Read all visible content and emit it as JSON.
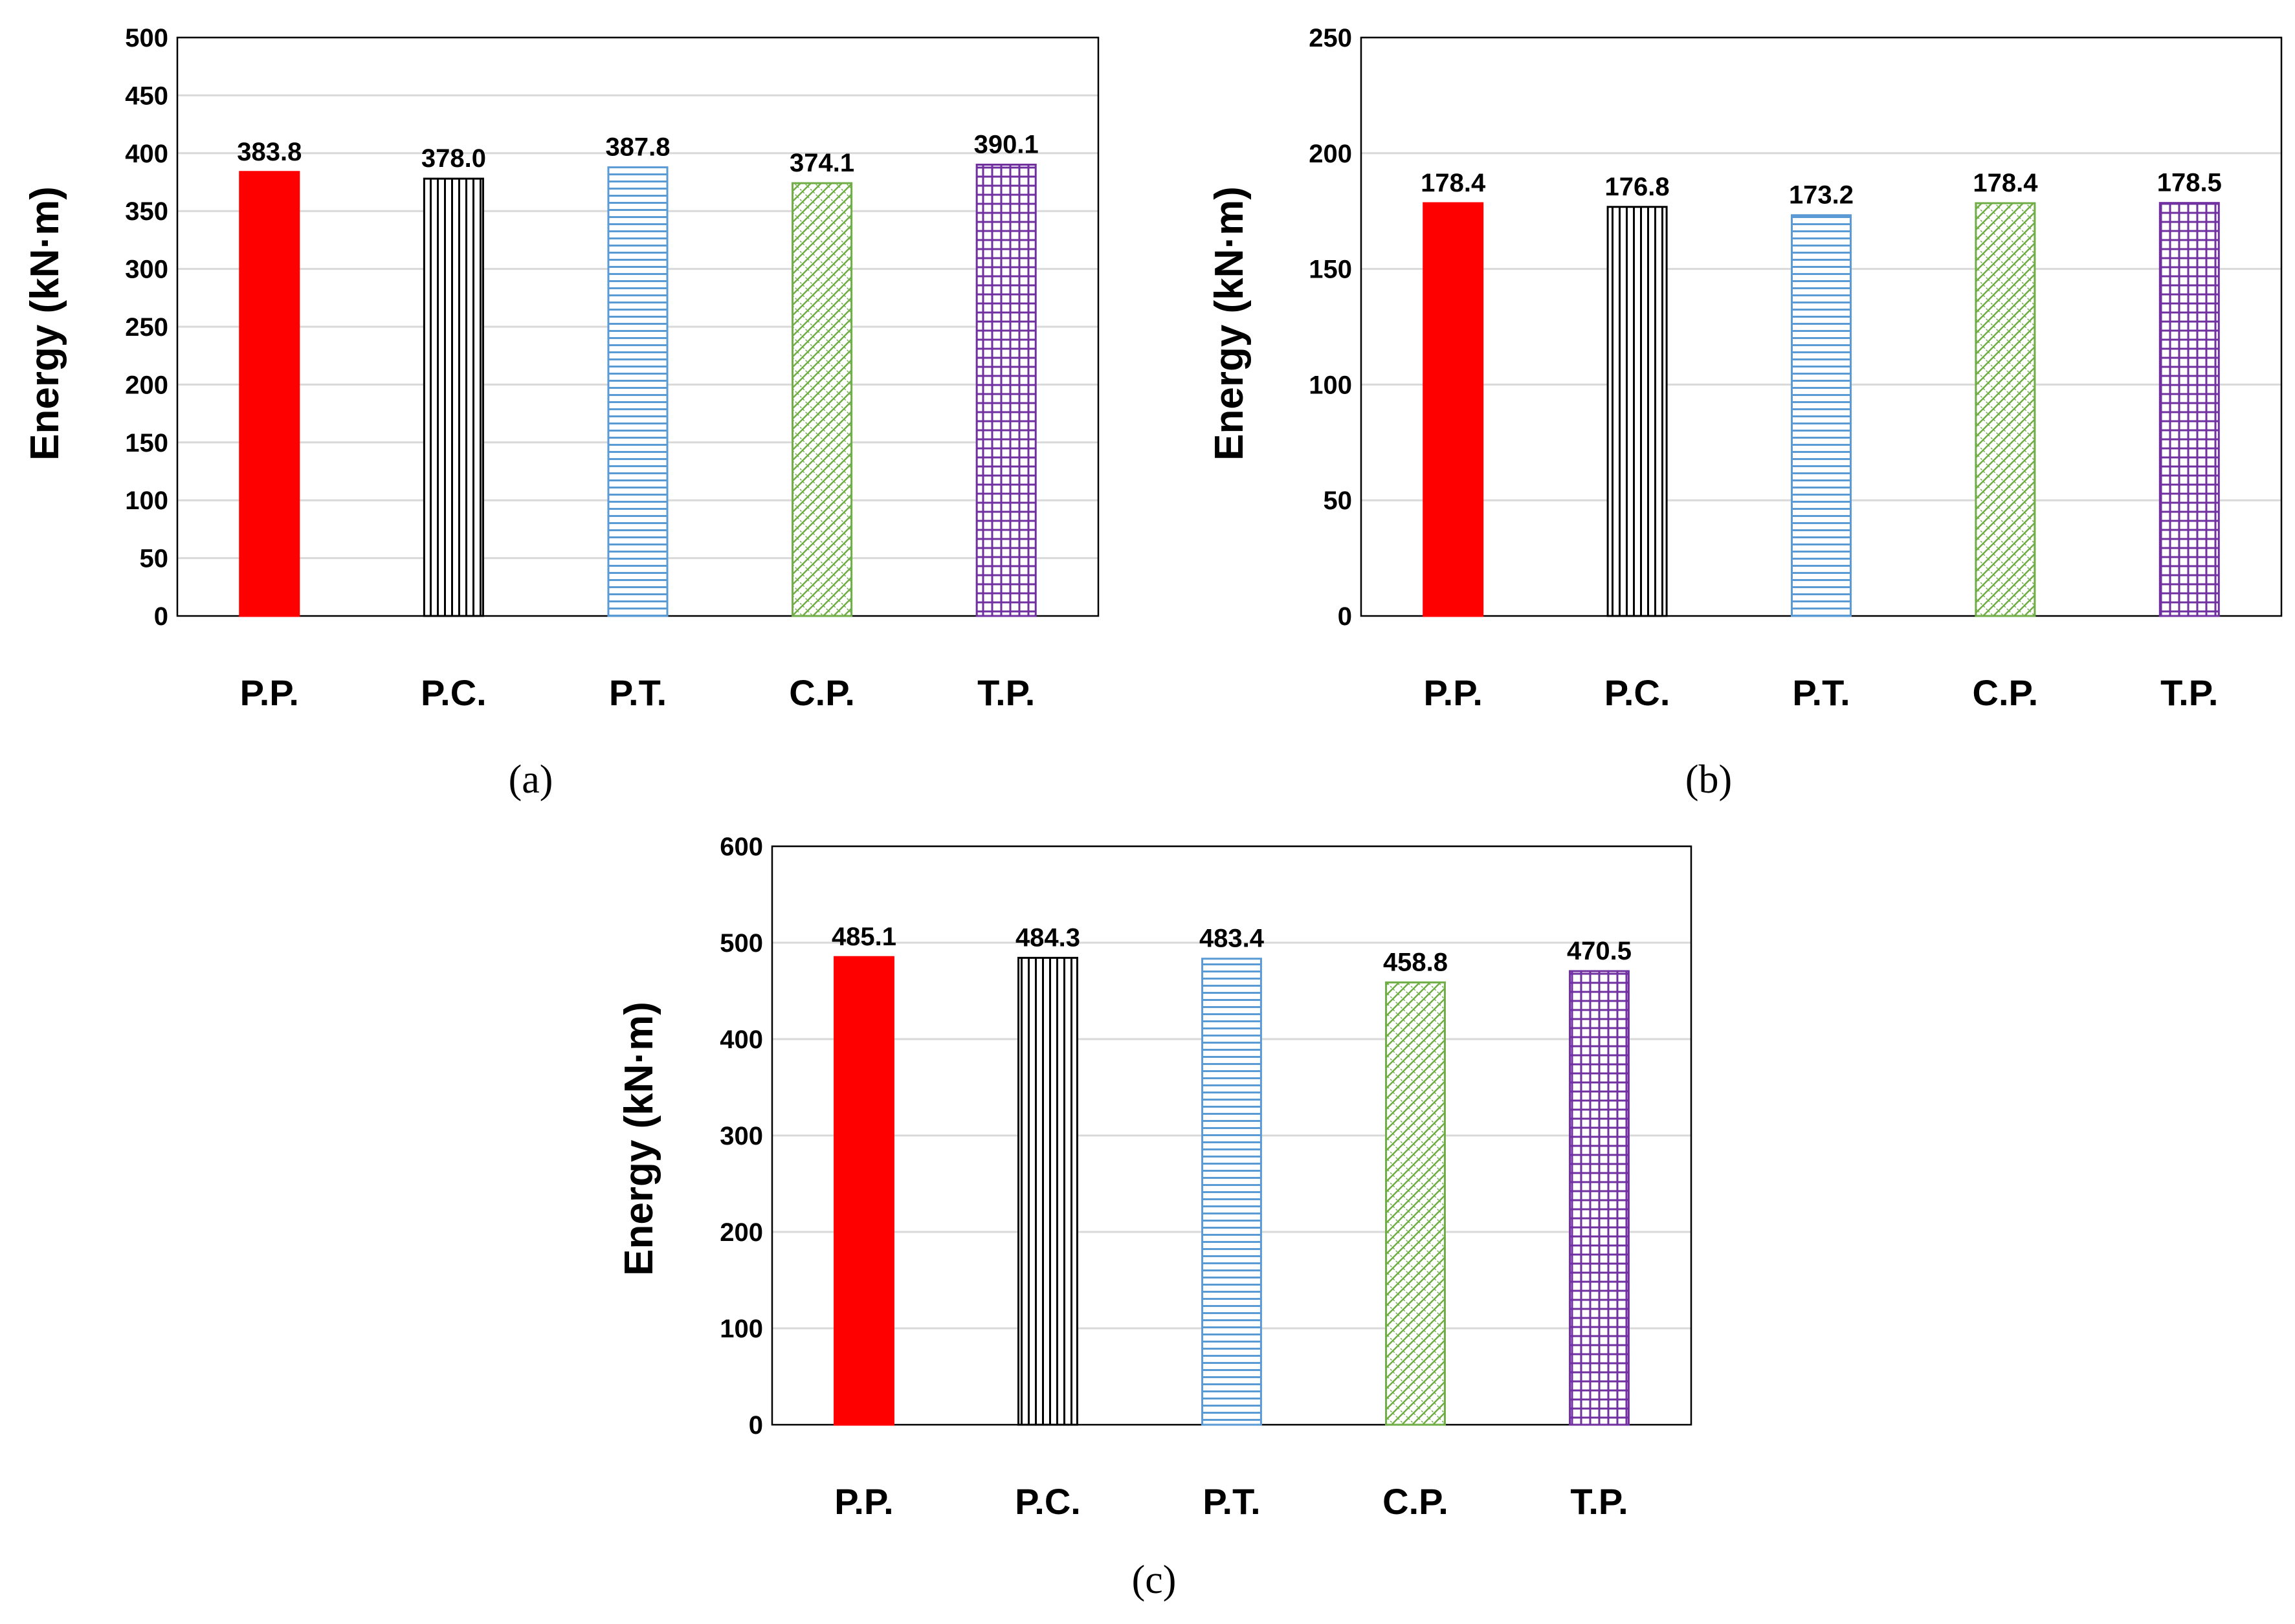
{
  "chart_data": [
    {
      "type": "bar",
      "panel": "(a)",
      "ylabel": "Energy (kN·m)",
      "ylim": [
        0,
        500
      ],
      "yticks": [
        0,
        50,
        100,
        150,
        200,
        250,
        300,
        350,
        400,
        450,
        500
      ],
      "categories": [
        "P.P.",
        "P.C.",
        "P.T.",
        "C.P.",
        "T.P."
      ],
      "values": [
        383.8,
        378.0,
        387.8,
        374.1,
        390.1
      ],
      "value_labels": [
        "383.8",
        "378.0",
        "387.8",
        "374.1",
        "390.1"
      ],
      "grid": true
    },
    {
      "type": "bar",
      "panel": "(b)",
      "ylabel": "Energy (kN·m)",
      "ylim": [
        0,
        250
      ],
      "yticks": [
        0,
        50,
        100,
        150,
        200,
        250
      ],
      "categories": [
        "P.P.",
        "P.C.",
        "P.T.",
        "C.P.",
        "T.P."
      ],
      "values": [
        178.4,
        176.8,
        173.2,
        178.4,
        178.5
      ],
      "value_labels": [
        "178.4",
        "176.8",
        "173.2",
        "178.4",
        "178.5"
      ],
      "grid": true
    },
    {
      "type": "bar",
      "panel": "(c)",
      "ylabel": "Energy (kN·m)",
      "ylim": [
        0,
        600
      ],
      "yticks": [
        0,
        100,
        200,
        300,
        400,
        500,
        600
      ],
      "categories": [
        "P.P.",
        "P.C.",
        "P.T.",
        "C.P.",
        "T.P."
      ],
      "values": [
        485.1,
        484.3,
        483.4,
        458.8,
        470.5
      ],
      "value_labels": [
        "485.1",
        "484.3",
        "483.4",
        "458.8",
        "470.5"
      ],
      "grid": true
    }
  ],
  "styles": {
    "bar_patterns": [
      "solid-red",
      "vertical-black",
      "horizontal-blue",
      "diagonal-green",
      "grid-purple"
    ],
    "colors": {
      "red": "#ff0000",
      "black": "#000000",
      "blue": "#5b9bd5",
      "green": "#70ad47",
      "purple": "#7030a0",
      "gridline": "#d9d9d9"
    }
  }
}
